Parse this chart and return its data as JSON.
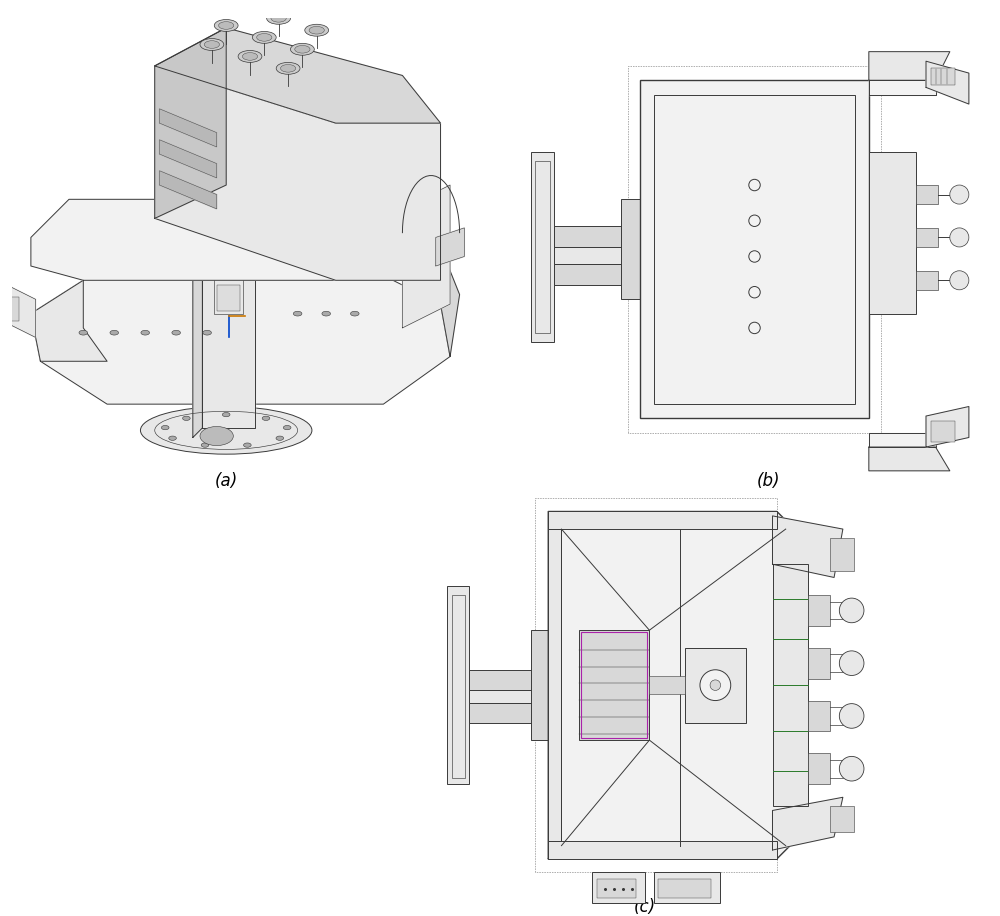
{
  "fig_width": 10.0,
  "fig_height": 9.16,
  "bg_color": "#ffffff",
  "label_a": "(a)",
  "label_b": "(b)",
  "label_c": "(c)",
  "label_fontsize": 12,
  "lc": "#3a3a3a",
  "lc2": "#555555",
  "lw": 0.7,
  "lwt": 0.45,
  "lwT": 1.0,
  "fill_light": "#f2f2f2",
  "fill_mid": "#e8e8e8",
  "fill_dark": "#d8d8d8",
  "fill_darker": "#c8c8c8",
  "green": "#3a8a3a",
  "magenta": "#aa22aa",
  "blue": "#0044cc",
  "orange": "#cc7700",
  "green_line": "#2a7a2a"
}
